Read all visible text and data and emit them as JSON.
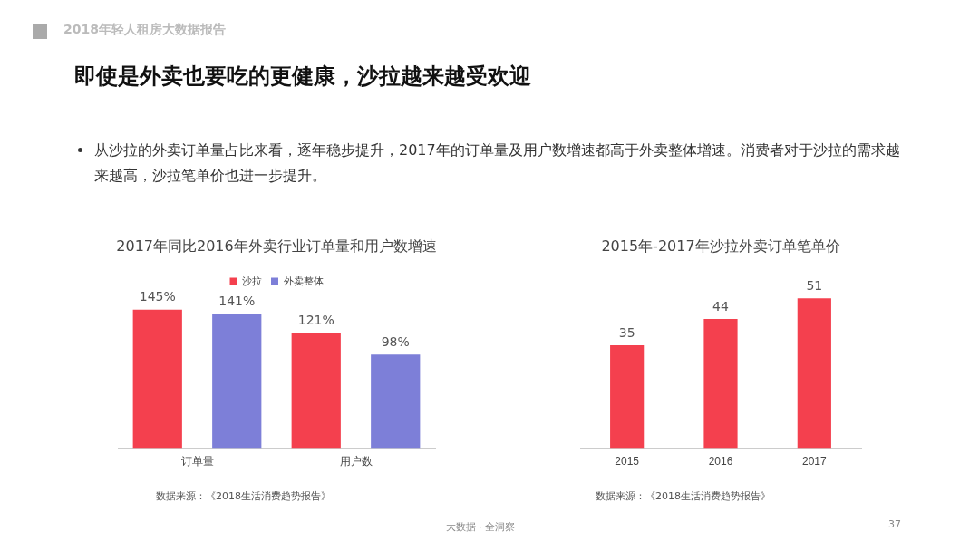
{
  "chart_data": [
    {
      "type": "bar",
      "title": "2017年同比2016年外卖行业订单量和用户数增速",
      "categories": [
        "订单量",
        "用户数"
      ],
      "series": [
        {
          "name": "沙拉",
          "color": "#f4404e",
          "values": [
            145,
            121
          ],
          "value_labels": [
            "145%",
            "121%"
          ]
        },
        {
          "name": "外卖整体",
          "color": "#7d7fd8",
          "values": [
            141,
            98
          ],
          "value_labels": [
            "141%",
            "98%"
          ]
        }
      ],
      "legend": "top",
      "annotations": [
        "2018年轻人租房大数据报告",
        "即使是外卖也要吃的更健康，沙拉越来越受欢迎",
        "从沙拉的外卖订单量占比来看，逐年稳步提升，2017年的订单量及用户数增速都高于外卖整体增速。消费者对于沙拉的需求越来越高，沙拉笔单价也进一步提升。",
        "数据来源：《2018生活消费趋势报告》"
      ]
    },
    {
      "type": "bar",
      "title": "2015年-2017年沙拉外卖订单笔单价",
      "categories": [
        "2015",
        "2016",
        "2017"
      ],
      "values": [
        35,
        44,
        51
      ],
      "color": "#f4404e",
      "data_labels": true,
      "annotations": [
        "数据来源：《2018生活消费趋势报告》",
        "大数据 · 全洞察",
        "37"
      ]
    }
  ]
}
